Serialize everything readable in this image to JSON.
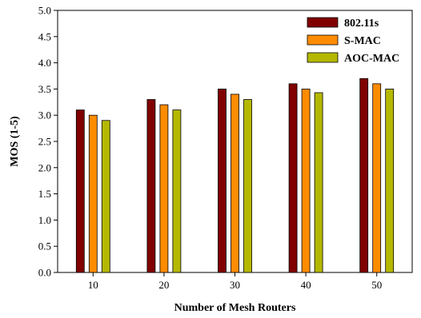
{
  "chart_data": {
    "type": "bar",
    "xlabel": "Number of Mesh Routers",
    "ylabel": "MOS (1-5)",
    "categories": [
      "10",
      "20",
      "30",
      "40",
      "50"
    ],
    "ylim": [
      0.0,
      5.0
    ],
    "yticks": [
      "0.0",
      "0.5",
      "1.0",
      "1.5",
      "2.0",
      "2.5",
      "3.0",
      "3.5",
      "4.0",
      "4.5",
      "5.0"
    ],
    "legend_position": "top-right",
    "grid": false,
    "series": [
      {
        "name": "802.11s",
        "color": "#800000",
        "values": [
          3.1,
          3.3,
          3.5,
          3.6,
          3.7
        ]
      },
      {
        "name": "S-MAC",
        "color": "#ff8c00",
        "values": [
          3.0,
          3.2,
          3.4,
          3.5,
          3.6
        ]
      },
      {
        "name": "AOC-MAC",
        "color": "#b5b800",
        "values": [
          2.9,
          3.1,
          3.3,
          3.43,
          3.5
        ]
      }
    ]
  }
}
